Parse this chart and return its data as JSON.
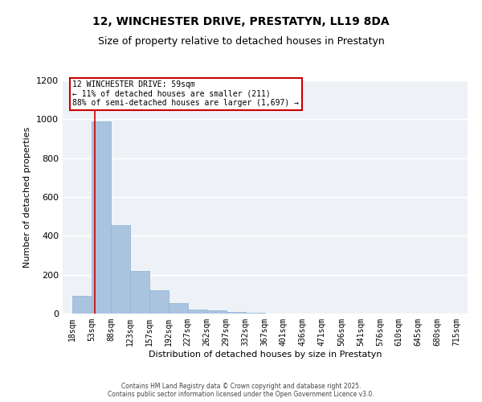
{
  "title": "12, WINCHESTER DRIVE, PRESTATYN, LL19 8DA",
  "subtitle": "Size of property relative to detached houses in Prestatyn",
  "xlabel": "Distribution of detached houses by size in Prestatyn",
  "ylabel": "Number of detached properties",
  "bar_left_edges": [
    18,
    53,
    88,
    123,
    157,
    192,
    227,
    262,
    297,
    332,
    367,
    401,
    436,
    471,
    506,
    541,
    576,
    610,
    645,
    680
  ],
  "bar_widths": [
    35,
    35,
    35,
    34,
    35,
    35,
    35,
    35,
    35,
    35,
    34,
    35,
    35,
    35,
    35,
    35,
    34,
    35,
    35,
    35
  ],
  "bar_heights": [
    90,
    990,
    455,
    220,
    120,
    55,
    20,
    15,
    10,
    5,
    2,
    0,
    0,
    0,
    0,
    0,
    0,
    0,
    0,
    0
  ],
  "bar_color": "#aac4e0",
  "bar_edgecolor": "#8ab4d0",
  "x_tick_labels": [
    "18sqm",
    "53sqm",
    "88sqm",
    "123sqm",
    "157sqm",
    "192sqm",
    "227sqm",
    "262sqm",
    "297sqm",
    "332sqm",
    "367sqm",
    "401sqm",
    "436sqm",
    "471sqm",
    "506sqm",
    "541sqm",
    "576sqm",
    "610sqm",
    "645sqm",
    "680sqm",
    "715sqm"
  ],
  "x_tick_positions": [
    18,
    53,
    88,
    123,
    157,
    192,
    227,
    262,
    297,
    332,
    367,
    401,
    436,
    471,
    506,
    541,
    576,
    610,
    645,
    680,
    715
  ],
  "ylim": [
    0,
    1200
  ],
  "xlim": [
    0,
    735
  ],
  "yticks": [
    0,
    200,
    400,
    600,
    800,
    1000,
    1200
  ],
  "vline_x": 59,
  "vline_color": "#cc0000",
  "annotation_text": "12 WINCHESTER DRIVE: 59sqm\n← 11% of detached houses are smaller (211)\n88% of semi-detached houses are larger (1,697) →",
  "annotation_box_color": "#cc0000",
  "bg_color": "#eef2f7",
  "grid_color": "#ffffff",
  "footer_text": "Contains HM Land Registry data © Crown copyright and database right 2025.\nContains public sector information licensed under the Open Government Licence v3.0.",
  "title_fontsize": 10,
  "subtitle_fontsize": 9,
  "ylabel_fontsize": 8,
  "xlabel_fontsize": 8,
  "tick_fontsize": 7
}
